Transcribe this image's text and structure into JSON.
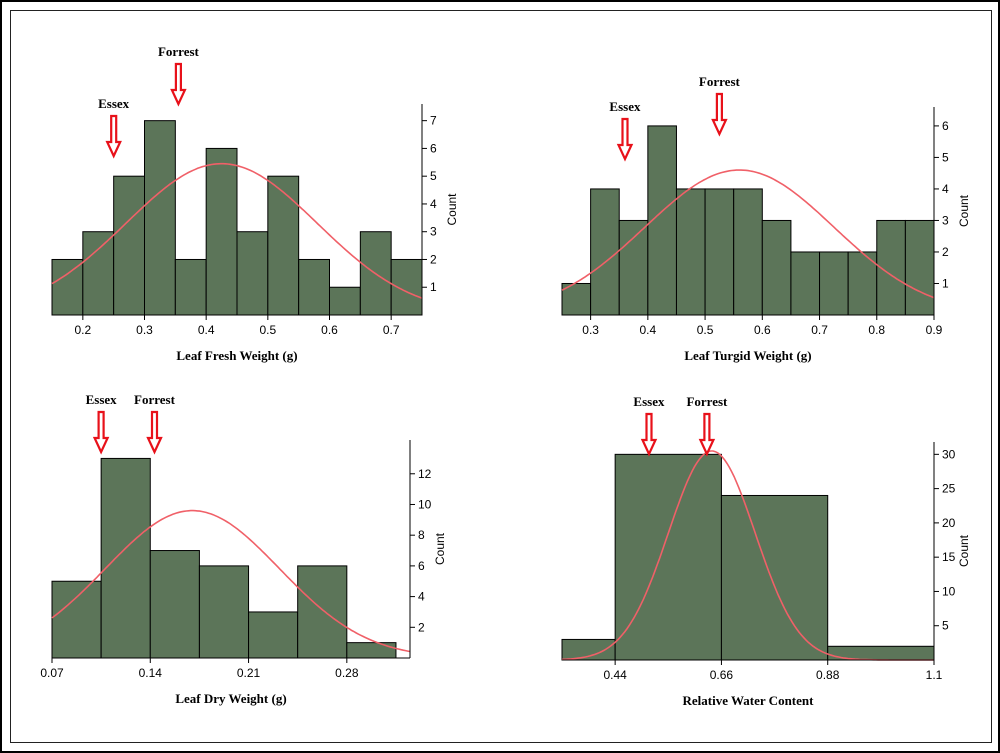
{
  "colors": {
    "bar": "#5c7559",
    "bar_edge": "#000000",
    "curve": "#f06068",
    "arrow": "#e8111a"
  },
  "chart_data": [
    {
      "id": "fresh",
      "type": "bar",
      "xlabel": "Leaf Fresh Weight (g)",
      "ylabel": "Count",
      "bin_edges": [
        0.15,
        0.2,
        0.25,
        0.3,
        0.35,
        0.4,
        0.45,
        0.5,
        0.55,
        0.6,
        0.65,
        0.7,
        0.75
      ],
      "values": [
        2,
        3,
        5,
        7,
        2,
        6,
        3,
        5,
        2,
        1,
        3,
        2
      ],
      "xlim": [
        0.15,
        0.75
      ],
      "ylim": [
        0,
        7.6
      ],
      "xticks": [
        0.2,
        0.3,
        0.4,
        0.5,
        0.6,
        0.7
      ],
      "xtick_labels": [
        "0.2",
        "0.3",
        "0.4",
        "0.5",
        "0.6",
        "0.7"
      ],
      "yticks": [
        1,
        2,
        3,
        4,
        5,
        6,
        7
      ],
      "curve": {
        "mean": 0.425,
        "sd": 0.155,
        "peak": 5.45
      },
      "annotations": [
        {
          "label": "Essex",
          "x": 0.25
        },
        {
          "label": "Forrest",
          "x": 0.355
        }
      ]
    },
    {
      "id": "turgid",
      "type": "bar",
      "xlabel": "Leaf Turgid Weight (g)",
      "ylabel": "Count",
      "bin_edges": [
        0.25,
        0.3,
        0.35,
        0.4,
        0.45,
        0.5,
        0.55,
        0.6,
        0.65,
        0.7,
        0.75,
        0.8,
        0.85,
        0.9
      ],
      "values": [
        1,
        4,
        3,
        6,
        4,
        4,
        4,
        3,
        2,
        2,
        2,
        3,
        3
      ],
      "xlim": [
        0.25,
        0.9
      ],
      "ylim": [
        0,
        6.6
      ],
      "xticks": [
        0.3,
        0.4,
        0.5,
        0.6,
        0.7,
        0.8,
        0.9
      ],
      "xtick_labels": [
        "0.3",
        "0.4",
        "0.5",
        "0.6",
        "0.7",
        "0.8",
        "0.9"
      ],
      "yticks": [
        1,
        2,
        3,
        4,
        5,
        6
      ],
      "curve": {
        "mean": 0.56,
        "sd": 0.165,
        "peak": 4.6
      },
      "annotations": [
        {
          "label": "Essex",
          "x": 0.36
        },
        {
          "label": "Forrest",
          "x": 0.525
        }
      ]
    },
    {
      "id": "dry",
      "type": "bar",
      "xlabel": "Leaf Dry Weight (g)",
      "ylabel": "Count",
      "bin_edges": [
        0.07,
        0.105,
        0.14,
        0.175,
        0.21,
        0.245,
        0.28,
        0.315
      ],
      "values": [
        5,
        13,
        7,
        6,
        3,
        6,
        1
      ],
      "xlim": [
        0.07,
        0.325
      ],
      "ylim": [
        0,
        14.2
      ],
      "xticks": [
        0.07,
        0.14,
        0.21,
        0.28
      ],
      "xtick_labels": [
        "0.07",
        "0.14",
        "0.21",
        "0.28"
      ],
      "yticks": [
        2,
        4,
        6,
        8,
        10,
        12
      ],
      "curve": {
        "mean": 0.17,
        "sd": 0.062,
        "peak": 9.6
      },
      "annotations": [
        {
          "label": "Essex",
          "x": 0.105
        },
        {
          "label": "Forrest",
          "x": 0.143
        }
      ]
    },
    {
      "id": "rwc",
      "type": "bar",
      "xlabel": "Relative Water Content",
      "ylabel": "Count",
      "bin_edges": [
        0.33,
        0.44,
        0.66,
        0.88,
        1.1
      ],
      "values": [
        3,
        30,
        24,
        2
      ],
      "xlim": [
        0.33,
        1.1
      ],
      "ylim": [
        0,
        31.8
      ],
      "xticks": [
        0.44,
        0.66,
        0.88,
        1.1
      ],
      "xtick_labels": [
        "0.44",
        "0.66",
        "0.88",
        "1.1"
      ],
      "yticks": [
        5,
        10,
        15,
        20,
        25,
        30
      ],
      "curve": {
        "mean": 0.64,
        "sd": 0.09,
        "peak": 30.5
      },
      "annotations": [
        {
          "label": "Essex",
          "x": 0.51
        },
        {
          "label": "Forrest",
          "x": 0.63
        }
      ]
    }
  ]
}
